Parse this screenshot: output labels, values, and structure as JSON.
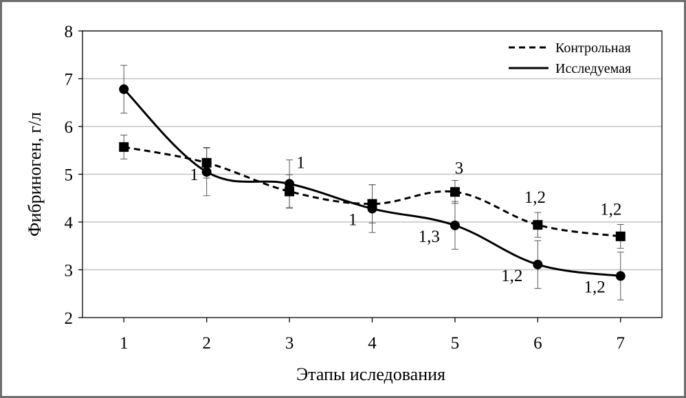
{
  "chart_data": {
    "type": "line",
    "title": "",
    "xlabel": "Этапы  иследования",
    "ylabel": "Фибриноген, г/л",
    "x": [
      1,
      2,
      3,
      4,
      5,
      6,
      7
    ],
    "xlim": [
      0.5,
      7.5
    ],
    "ylim": [
      2,
      8
    ],
    "yticks": [
      2,
      3,
      4,
      5,
      6,
      7,
      8
    ],
    "grid": "horizontal",
    "legend": "top-right",
    "series": [
      {
        "name": "Контрольная",
        "style": "dashed",
        "marker": "square",
        "color": "#000000",
        "values": [
          5.57,
          5.24,
          4.64,
          4.38,
          4.63,
          3.94,
          3.7
        ],
        "errors": [
          0.25,
          0.32,
          0.35,
          0.4,
          0.24,
          0.26,
          0.25
        ]
      },
      {
        "name": "Исследуемая",
        "style": "solid",
        "marker": "circle",
        "color": "#000000",
        "values": [
          6.78,
          5.05,
          4.8,
          4.28,
          3.93,
          3.11,
          2.87
        ],
        "errors": [
          0.5,
          0.5,
          0.5,
          0.5,
          0.5,
          0.5,
          0.5
        ]
      }
    ],
    "annotations": [
      {
        "x": 2,
        "text": "1",
        "anchor": "left-below"
      },
      {
        "x": 3,
        "text": "1",
        "anchor": "right-above"
      },
      {
        "x": 4,
        "text": "1",
        "anchor": "left-below"
      },
      {
        "x": 5,
        "text": "3",
        "anchor": "above"
      },
      {
        "x": 5,
        "text": "1,3",
        "anchor": "left-below"
      },
      {
        "x": 6,
        "text": "1,2",
        "anchor": "above"
      },
      {
        "x": 6,
        "text": "1,2",
        "anchor": "left-below"
      },
      {
        "x": 7,
        "text": "1,2",
        "anchor": "above-left"
      },
      {
        "x": 7,
        "text": "1,2",
        "anchor": "left-below"
      }
    ]
  }
}
